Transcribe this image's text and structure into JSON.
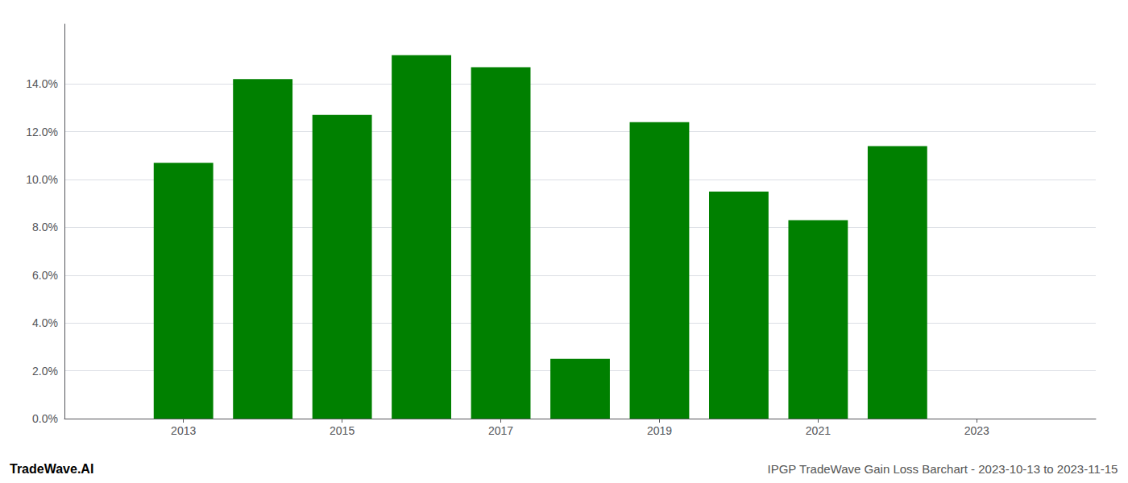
{
  "chart_data": {
    "type": "bar",
    "x": [
      2013,
      2014,
      2015,
      2016,
      2017,
      2018,
      2019,
      2020,
      2021,
      2022
    ],
    "values": [
      0.107,
      0.142,
      0.127,
      0.152,
      0.147,
      0.025,
      0.124,
      0.095,
      0.083,
      0.114
    ],
    "color": "#008000",
    "xlim": [
      2011.5,
      2024.5
    ],
    "xticks": [
      2013,
      2015,
      2017,
      2019,
      2021,
      2023
    ],
    "ylim": [
      0,
      0.165
    ],
    "yticks": [
      {
        "value": 0.0,
        "label": "0.0%"
      },
      {
        "value": 0.02,
        "label": "2.0%"
      },
      {
        "value": 0.04,
        "label": "4.0%"
      },
      {
        "value": 0.06,
        "label": "6.0%"
      },
      {
        "value": 0.08,
        "label": "8.0%"
      },
      {
        "value": 0.1,
        "label": "10.0%"
      },
      {
        "value": 0.12,
        "label": "12.0%"
      },
      {
        "value": 0.14,
        "label": "14.0%"
      }
    ],
    "grid": true,
    "annotations": [
      {
        "text": "TradeWave.AI",
        "color": "#000000"
      },
      {
        "text": "IPGP TradeWave Gain Loss Barchart - 2023-10-13 to 2023-11-15",
        "color": "#555555"
      }
    ]
  }
}
